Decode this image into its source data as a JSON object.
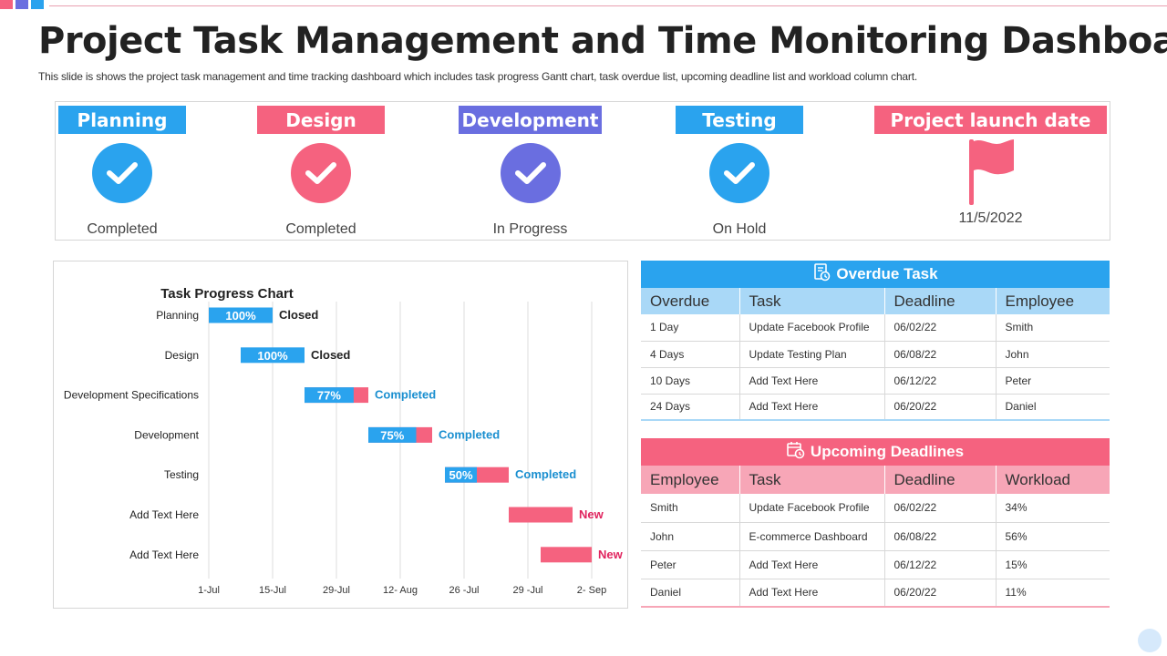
{
  "title": "Project Task Management and Time Monitoring Dashboard",
  "subtitle": "This slide is shows the project task management and time tracking dashboard which includes task progress Gantt chart, task overdue list, upcoming deadline list and workload column chart.",
  "colors": {
    "blue": "#2aa3ee",
    "pink": "#f5627f",
    "purple": "#6a6ee0",
    "light_blue": "#a9d8f7",
    "light_pink": "#f7a6b7"
  },
  "phases": [
    {
      "label": "Planning",
      "status": "Completed",
      "color": "#2aa3ee",
      "icon": "check-icon"
    },
    {
      "label": "Design",
      "status": "Completed",
      "color": "#f5627f",
      "icon": "check-icon"
    },
    {
      "label": "Development",
      "status": "In Progress",
      "color": "#6a6ee0",
      "icon": "check-icon"
    },
    {
      "label": "Testing",
      "status": "On Hold",
      "color": "#2aa3ee",
      "icon": "check-icon"
    },
    {
      "label": "Project launch date",
      "status": "11/5/2022",
      "color": "#f5627f",
      "icon": "flag-icon"
    }
  ],
  "chart_data": {
    "type": "bar",
    "title": "Task Progress Chart",
    "x_tick_labels": [
      "1-Jul",
      "15-Jul",
      "29-Jul",
      "12- Aug",
      "26 -Jul",
      "29 -Jul",
      "2- Sep"
    ],
    "tasks": [
      {
        "name": "Planning",
        "start_tick": 0,
        "end_tick": 1,
        "progress": 100,
        "progress_label": "100%",
        "status": "Closed",
        "status_color": "#222222"
      },
      {
        "name": "Design",
        "start_tick": 0.5,
        "end_tick": 1.5,
        "progress": 100,
        "progress_label": "100%",
        "status": "Closed",
        "status_color": "#222222"
      },
      {
        "name": "Development Specifications",
        "start_tick": 1.5,
        "end_tick": 2.5,
        "progress": 77,
        "progress_label": "77%",
        "status": "Completed",
        "status_color": "#1a8fd0"
      },
      {
        "name": "Development",
        "start_tick": 2.5,
        "end_tick": 3.5,
        "progress": 75,
        "progress_label": "75%",
        "status": "Completed",
        "status_color": "#1a8fd0"
      },
      {
        "name": "Testing",
        "start_tick": 3.7,
        "end_tick": 4.7,
        "progress": 50,
        "progress_label": "50%",
        "status": "Completed",
        "status_color": "#1a8fd0"
      },
      {
        "name": "Add Text Here",
        "start_tick": 4.7,
        "end_tick": 5.7,
        "progress": 0,
        "progress_label": "",
        "status": "New",
        "status_color": "#e0245e"
      },
      {
        "name": "Add Text Here",
        "start_tick": 5.2,
        "end_tick": 6.0,
        "progress": 0,
        "progress_label": "",
        "status": "New",
        "status_color": "#e0245e"
      }
    ]
  },
  "overdue": {
    "title": "Overdue Task",
    "icon": "document-clock-icon",
    "columns": [
      "Overdue",
      "Task",
      "Deadline",
      "Employee"
    ],
    "rows": [
      [
        "1 Day",
        "Update Facebook Profile",
        "06/02/22",
        "Smith"
      ],
      [
        "4 Days",
        "Update Testing Plan",
        "06/08/22",
        "John"
      ],
      [
        "10 Days",
        "Add Text Here",
        "06/12/22",
        "Peter"
      ],
      [
        "24 Days",
        "Add Text Here",
        "06/20/22",
        "Daniel"
      ]
    ]
  },
  "upcoming": {
    "title": "Upcoming Deadlines",
    "icon": "calendar-clock-icon",
    "columns": [
      "Employee",
      "Task",
      "Deadline",
      "Workload"
    ],
    "rows": [
      [
        "Smith",
        "Update Facebook Profile",
        "06/02/22",
        "34%"
      ],
      [
        "John",
        "E-commerce Dashboard",
        "06/08/22",
        "56%"
      ],
      [
        "Peter",
        "Add Text Here",
        "06/12/22",
        "15%"
      ],
      [
        "Daniel",
        "Add Text Here",
        "06/20/22",
        "11%"
      ]
    ]
  }
}
